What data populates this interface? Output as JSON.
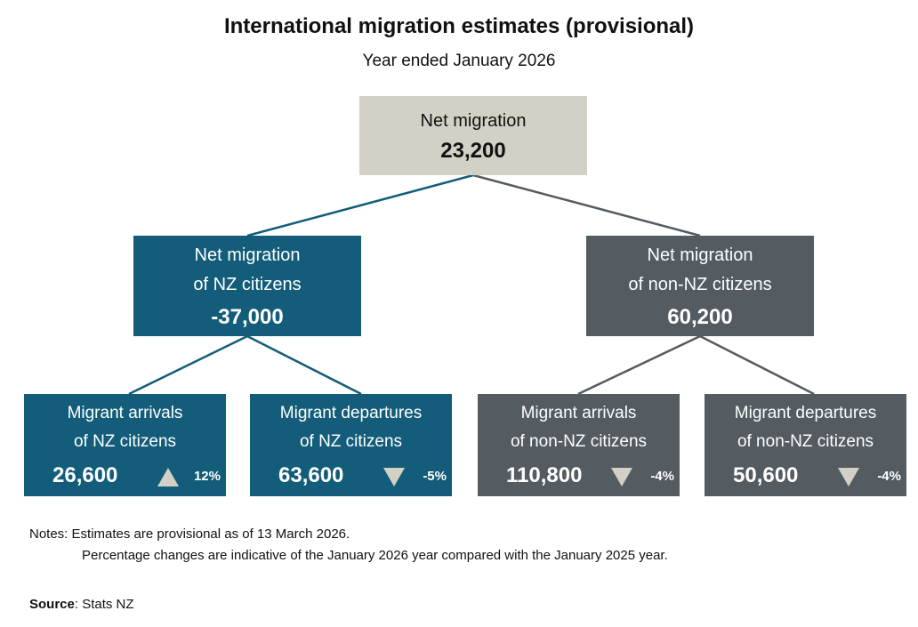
{
  "header": {
    "title": "International migration estimates (provisional)",
    "subtitle": "Year ended January 2026"
  },
  "colors": {
    "teal": "#135d7a",
    "grey": "#545b61",
    "beige": "#d3d1c5"
  },
  "root": {
    "label": "Net migration",
    "value": "23,200"
  },
  "nz_citizens": {
    "label_line1": "Net migration",
    "label_line2": "of NZ citizens",
    "value": "-37,000",
    "arrivals": {
      "label_line1": "Migrant arrivals",
      "label_line2": "of NZ citizens",
      "value": "26,600",
      "change": "12%",
      "direction": "up",
      "icon": "triangle-up-icon"
    },
    "departures": {
      "label_line1": "Migrant departures",
      "label_line2": "of NZ citizens",
      "value": "63,600",
      "change": "-5%",
      "direction": "down",
      "icon": "triangle-down-icon"
    }
  },
  "non_nz_citizens": {
    "label_line1": "Net migration",
    "label_line2": "of non-NZ citizens",
    "value": "60,200",
    "arrivals": {
      "label_line1": "Migrant arrivals",
      "label_line2": "of non-NZ citizens",
      "value": "110,800",
      "change": "-4%",
      "direction": "down",
      "icon": "triangle-down-icon"
    },
    "departures": {
      "label_line1": "Migrant departures",
      "label_line2": "of non-NZ citizens",
      "value": "50,600",
      "change": "-4%",
      "direction": "down",
      "icon": "triangle-down-icon"
    }
  },
  "notes": {
    "line1": "Notes: Estimates are provisional as of 13 March 2026.",
    "line2": "Percentage changes are indicative of the January 2026 year compared with the January 2025 year."
  },
  "source": {
    "label": "Source",
    "text": ": Stats NZ"
  }
}
